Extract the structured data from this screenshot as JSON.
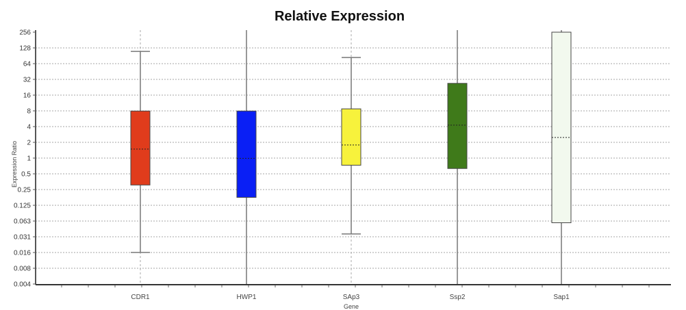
{
  "chart_data": {
    "type": "box",
    "title": "Relative Expression",
    "xlabel": "Gene",
    "ylabel": "Expression Ratio",
    "yscale": "log2",
    "ylim": [
      0.004,
      256
    ],
    "yticks": [
      "256",
      "128",
      "64",
      "32",
      "16",
      "8",
      "4",
      "2",
      "1",
      "0.5",
      "0.25",
      "0.125",
      "0.063",
      "0.031",
      "0.016",
      "0.008",
      "0.004"
    ],
    "grid": true,
    "categories": [
      "CDR1",
      "HWP1",
      "SAp3",
      "Ssp2",
      "Sap1"
    ],
    "series": [
      {
        "name": "CDR1",
        "whisker_low": 0.016,
        "q1": 0.31,
        "median": 1.5,
        "q3": 8,
        "whisker_high": 110,
        "color": "#e03c1c",
        "whisker_style": "capped"
      },
      {
        "name": "HWP1",
        "whisker_low": 0.004,
        "q1": 0.18,
        "median": 1,
        "q3": 8,
        "whisker_high": 256,
        "color": "#0a1ff5",
        "whisker_style": "full"
      },
      {
        "name": "SAp3",
        "whisker_low": 0.036,
        "q1": 0.74,
        "median": 1.8,
        "q3": 8.8,
        "whisker_high": 84,
        "color": "#f7f23c",
        "whisker_style": "capped"
      },
      {
        "name": "Ssp2",
        "whisker_low": 0.004,
        "q1": 0.64,
        "median": 4.3,
        "q3": 27,
        "whisker_high": 256,
        "color": "#3f7a1a",
        "whisker_style": "full"
      },
      {
        "name": "Sap1",
        "whisker_low": 0.004,
        "q1": 0.059,
        "median": 2.5,
        "q3": 256,
        "whisker_high": 256,
        "color": "#f2f9ee",
        "whisker_style": "full"
      }
    ]
  }
}
